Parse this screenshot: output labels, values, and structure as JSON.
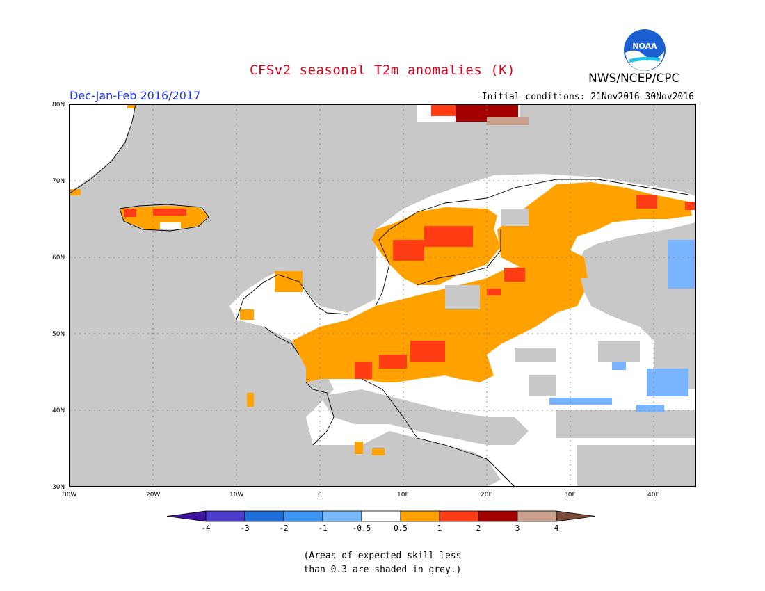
{
  "header": {
    "title": "CFSv2 seasonal T2m anomalies (K)",
    "agency": "NWS/NCEP/CPC",
    "logo_text": "NOAA",
    "season": "Dec-Jan-Feb 2016/2017",
    "initial_conditions": "Initial conditions: 21Nov2016-30Nov2016"
  },
  "map": {
    "lon_range": [
      -30,
      45
    ],
    "lat_range": [
      30,
      80
    ],
    "lat_ticks": [
      "30N",
      "40N",
      "50N",
      "60N",
      "70N",
      "80N"
    ],
    "lon_ticks": [
      "30W",
      "20W",
      "10W",
      "0",
      "10E",
      "20E",
      "30E",
      "40E"
    ],
    "grey_meaning": "Areas of expected skill less than 0.3 are shaded in grey.",
    "colors": {
      "ocean_grey": "#c8c8c8",
      "neutral": "#ffffff",
      "warm_0_5_1": "#ffa200",
      "warm_1_2": "#ff3c14",
      "warm_2_3": "#a50000",
      "warm_3_4": "#c8a08c",
      "cool_m1_m0_5": "#78b4ff"
    }
  },
  "colorbar": {
    "labels": [
      "-4",
      "-3",
      "-2",
      "-1",
      "-0.5",
      "0.5",
      "1",
      "2",
      "3",
      "4"
    ],
    "colors": [
      "#3c14a0",
      "#4b3ccd",
      "#1e6edc",
      "#3c96f5",
      "#78b9fa",
      "#ffffff",
      "#ffa000",
      "#ff3c14",
      "#a50000",
      "#c8a08c",
      "#7a4a3a"
    ]
  },
  "footnote": {
    "line1": "(Areas of expected skill less",
    "line2": "than 0.3 are shaded in grey.)"
  }
}
